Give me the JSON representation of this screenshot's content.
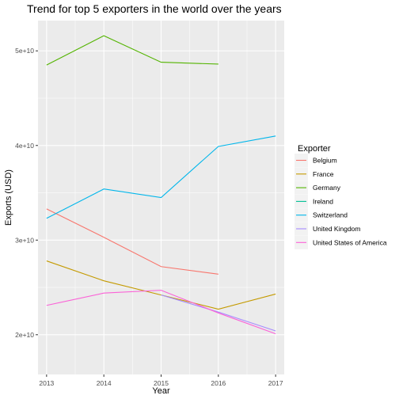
{
  "chart_data": {
    "type": "line",
    "title": "Trend for top 5 exporters in the world over the years",
    "xlabel": "Year",
    "ylabel": "Exports (USD)",
    "x": [
      2013,
      2014,
      2015,
      2016,
      2017
    ],
    "xlim": [
      2012.85,
      2017.15
    ],
    "ylim": [
      15800000000,
      53200000000
    ],
    "x_ticks": [
      2013,
      2014,
      2015,
      2016,
      2017
    ],
    "y_ticks": [
      20000000000,
      30000000000,
      40000000000,
      50000000000
    ],
    "y_tick_labels": [
      "2e+10",
      "3e+10",
      "4e+10",
      "5e+10"
    ],
    "grid": true,
    "background": "#ebebeb",
    "legend": {
      "title": "Exporter",
      "placement": "right"
    },
    "series": [
      {
        "name": "Belgium",
        "color": "#F8766D",
        "values": [
          33300000000,
          30300000000,
          27200000000,
          26400000000,
          null
        ]
      },
      {
        "name": "France",
        "color": "#C49A00",
        "values": [
          27800000000,
          25700000000,
          24200000000,
          22700000000,
          24300000000
        ]
      },
      {
        "name": "Germany",
        "color": "#53B400",
        "values": [
          48500000000,
          51600000000,
          48800000000,
          48600000000,
          null
        ]
      },
      {
        "name": "Ireland",
        "color": "#00C094",
        "values": [
          null,
          null,
          null,
          null,
          null
        ]
      },
      {
        "name": "Switzerland",
        "color": "#00B6EB",
        "values": [
          32300000000,
          35400000000,
          34500000000,
          39900000000,
          41000000000
        ]
      },
      {
        "name": "United Kingdom",
        "color": "#A58AFF",
        "values": [
          null,
          null,
          24200000000,
          22400000000,
          20400000000
        ]
      },
      {
        "name": "United States of America",
        "color": "#FB61D7",
        "values": [
          23100000000,
          24400000000,
          24700000000,
          22300000000,
          20100000000
        ]
      }
    ]
  }
}
